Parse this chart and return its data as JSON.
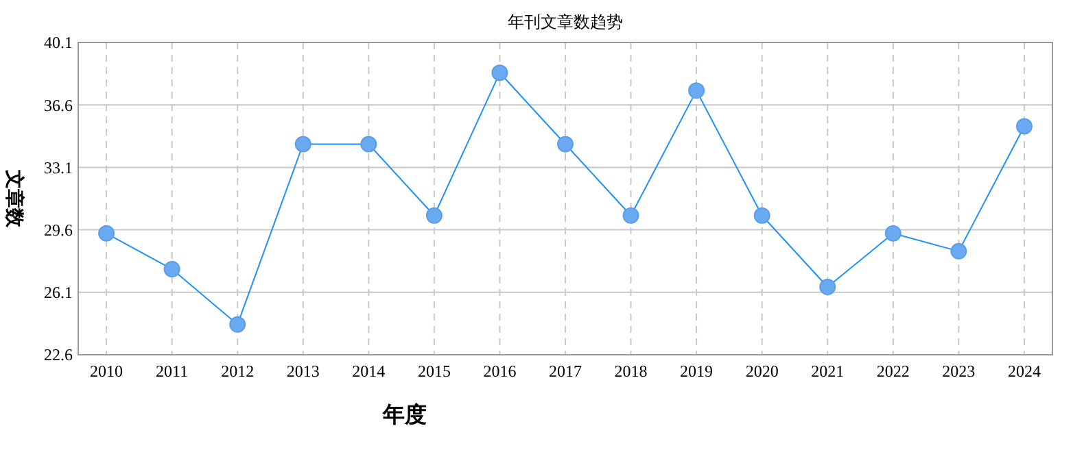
{
  "chart_data": {
    "type": "line",
    "title": "年刊文章数趋势",
    "xlabel": "年度",
    "ylabel": "文章数",
    "categories": [
      "2010",
      "2011",
      "2012",
      "2013",
      "2014",
      "2015",
      "2016",
      "2017",
      "2018",
      "2019",
      "2020",
      "2021",
      "2022",
      "2023",
      "2024"
    ],
    "series": [
      {
        "color": "#1e90ff",
        "values": [
          29.4,
          27.4,
          24.3,
          34.4,
          34.4,
          30.4,
          38.4,
          34.4,
          30.4,
          37.4,
          30.4,
          26.4,
          29.4,
          28.4,
          35.4
        ]
      }
    ],
    "ylim": [
      22.6,
      40.1
    ],
    "yticks": [
      22.6,
      26.1,
      29.6,
      33.1,
      36.6,
      40.1
    ],
    "grid": true,
    "marker": "circle",
    "line_style": "solid"
  }
}
